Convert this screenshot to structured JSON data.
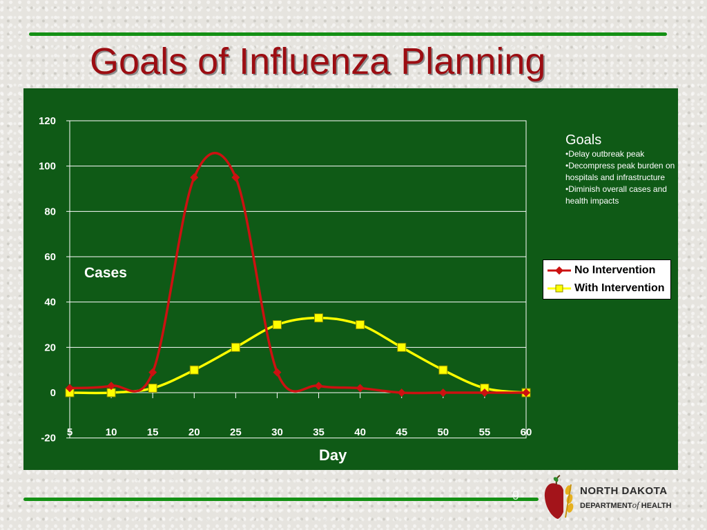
{
  "slide": {
    "title": "Goals of Influenza Planning",
    "number": "9"
  },
  "goals": {
    "heading": "Goals",
    "items": [
      "•Delay outbreak peak",
      "•Decompress peak burden on hospitals and infrastructure",
      "•Diminish overall cases and health impacts"
    ]
  },
  "logo": {
    "line1": "NORTH DAKOTA",
    "line2_a": "DEPARTMENT",
    "line2_of": "of",
    "line2_b": "HEALTH"
  },
  "colors": {
    "background": "#0f5a16",
    "no_intervention": "#cc1111",
    "with_intervention": "#ffff00",
    "title": "#9c0d12"
  },
  "chart_data": {
    "type": "line",
    "title": "",
    "xlabel": "Day",
    "ylabel": "Cases",
    "x": [
      5,
      10,
      15,
      20,
      25,
      30,
      35,
      40,
      45,
      50,
      55,
      60
    ],
    "xticks": [
      "5",
      "10",
      "15",
      "20",
      "25",
      "30",
      "35",
      "40",
      "45",
      "50",
      "55",
      "60"
    ],
    "ylim": [
      -20,
      120
    ],
    "yticks": [
      -20,
      0,
      20,
      40,
      60,
      80,
      100,
      120
    ],
    "grid": true,
    "smooth": true,
    "legend_position": "right",
    "series": [
      {
        "name": "No Intervention",
        "marker": "diamond",
        "color": "#cc1111",
        "values": [
          2,
          3,
          9,
          95,
          95,
          9,
          3,
          2,
          0,
          0,
          0,
          0
        ]
      },
      {
        "name": "With Intervention",
        "marker": "square",
        "color": "#ffff00",
        "values": [
          0,
          0,
          2,
          10,
          20,
          30,
          33,
          30,
          20,
          10,
          2,
          0
        ]
      }
    ]
  }
}
